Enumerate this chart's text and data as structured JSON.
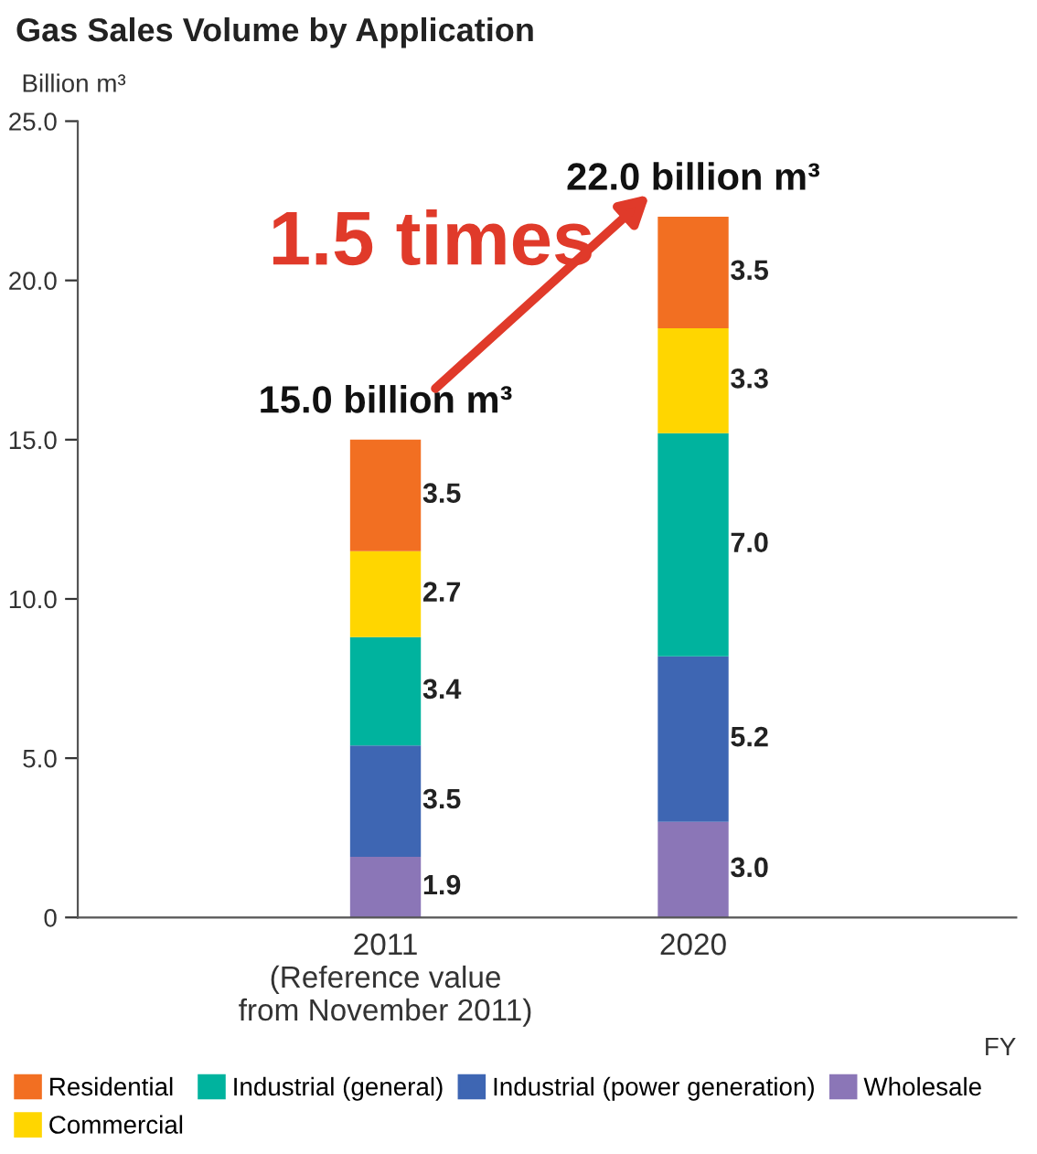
{
  "chart_data": {
    "type": "bar",
    "title": "Gas Sales Volume by Application",
    "ylabel": "Billion m³",
    "xlabel": "FY",
    "categories": [
      "2011\n(Reference value\nfrom November 2011)",
      "2020"
    ],
    "stacked": true,
    "series": [
      {
        "name": "Wholesale",
        "color": "#8b76b7",
        "values": [
          1.9,
          3.0
        ],
        "value_labels": [
          "1.9",
          "3.0"
        ]
      },
      {
        "name": "Industrial (power generation)",
        "color": "#3e66b3",
        "values": [
          3.5,
          5.2
        ],
        "value_labels": [
          "3.5",
          "5.2"
        ]
      },
      {
        "name": "Industrial (general)",
        "color": "#00b39e",
        "values": [
          3.4,
          7.0
        ],
        "value_labels": [
          "3.4",
          "7.0"
        ]
      },
      {
        "name": "Commercial",
        "color": "#ffd600",
        "values": [
          2.7,
          3.3
        ],
        "value_labels": [
          "2.7",
          "3.3"
        ]
      },
      {
        "name": "Residential",
        "color": "#f26f22",
        "values": [
          3.5,
          3.5
        ],
        "value_labels": [
          "3.5",
          "3.5"
        ]
      }
    ],
    "totals": [
      "15.0 billion m³",
      "22.0 billion m³"
    ],
    "annotations": [
      "1.5 times"
    ],
    "ylim": [
      0,
      25
    ],
    "yticks": [
      0,
      {
        "value": 5,
        "label": "5.0"
      },
      {
        "value": 10,
        "label": "10.0"
      },
      {
        "value": 15,
        "label": "15.0"
      },
      {
        "value": 20,
        "label": "20.0"
      },
      {
        "value": 25,
        "label": "25.0"
      }
    ],
    "grid": false,
    "legend": "bottom"
  }
}
